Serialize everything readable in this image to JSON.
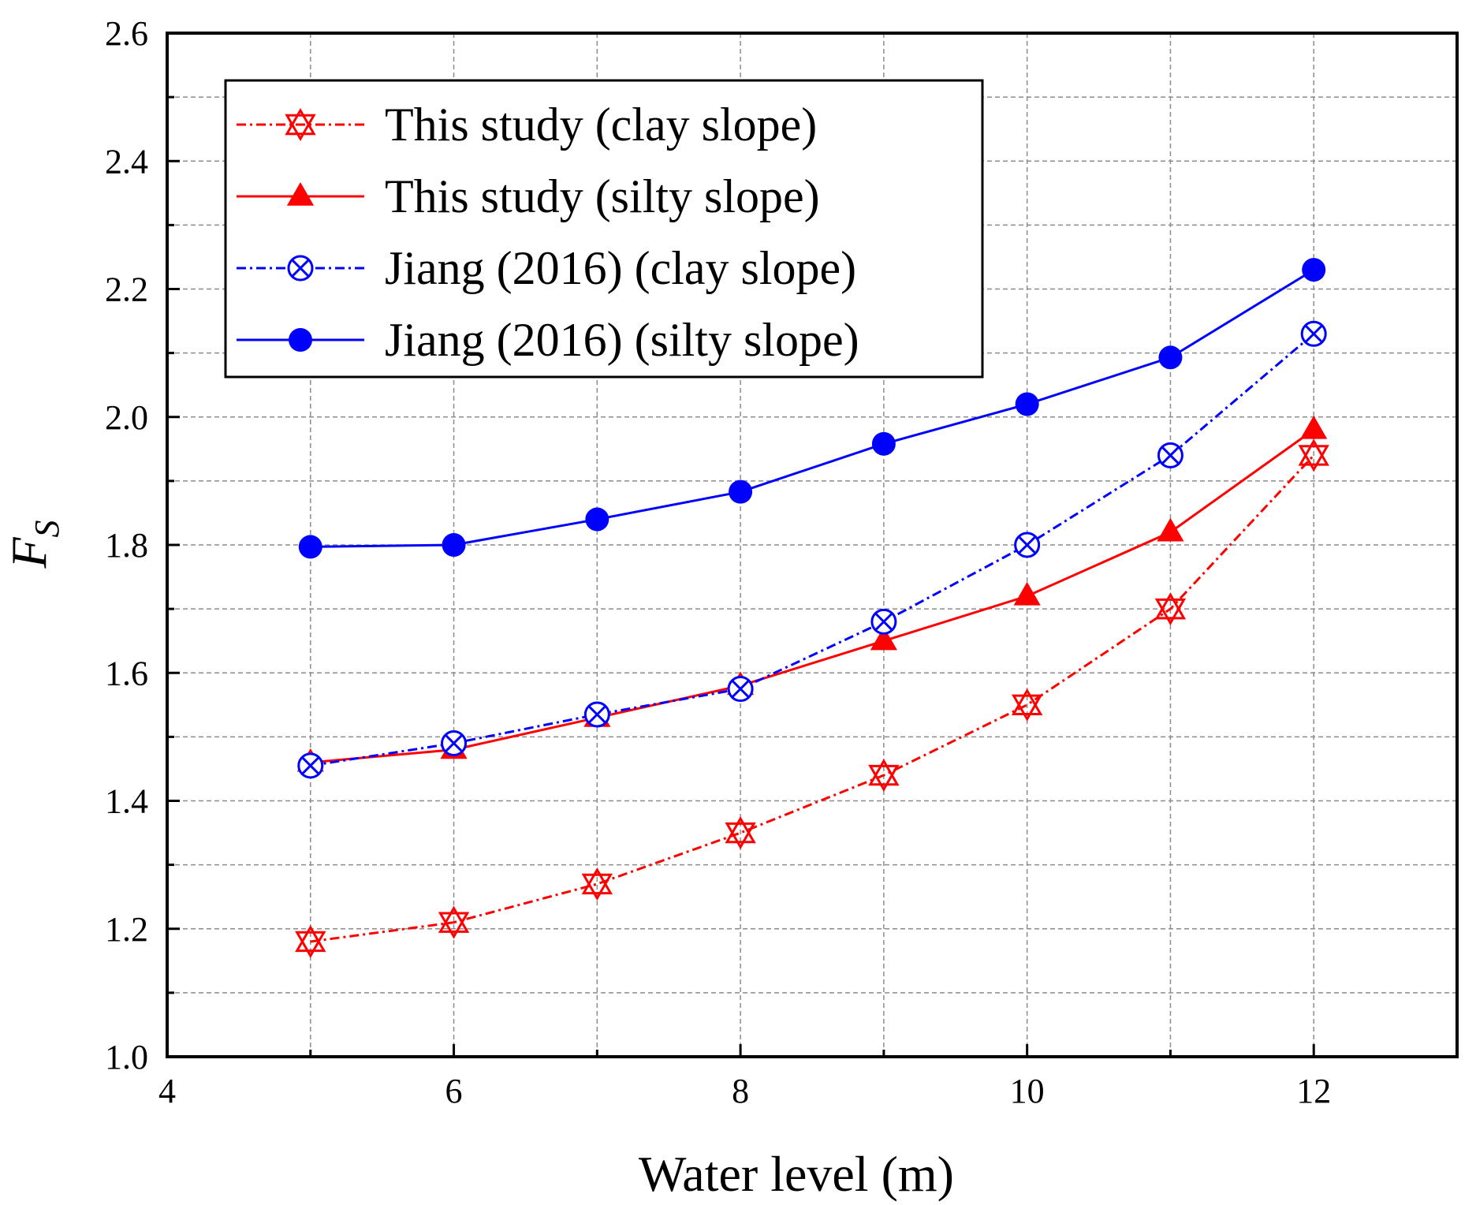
{
  "chart_data": {
    "type": "line",
    "title": "",
    "xlabel": "Water level (m)",
    "ylabel_main": "F",
    "ylabel_sub": "S",
    "xlim": [
      4,
      13
    ],
    "ylim": [
      1.0,
      2.6
    ],
    "xticks": [
      4,
      6,
      8,
      10,
      12
    ],
    "xtick_labels": [
      "4",
      "6",
      "8",
      "10",
      "12"
    ],
    "yticks": [
      1.0,
      1.2,
      1.4,
      1.6,
      1.8,
      2.0,
      2.2,
      2.4,
      2.6
    ],
    "ytick_labels": [
      "1.0",
      "1.2",
      "1.4",
      "1.6",
      "1.8",
      "2.0",
      "2.2",
      "2.4",
      "2.6"
    ],
    "grid": true,
    "legend_position": "top-left",
    "x": [
      5,
      6,
      7,
      8,
      9,
      10,
      11,
      12
    ],
    "series": [
      {
        "name": "This study (clay slope)",
        "values": [
          1.18,
          1.21,
          1.27,
          1.35,
          1.44,
          1.55,
          1.7,
          1.94
        ],
        "color": "#ff0000",
        "line_style": "dash-dot",
        "marker": "triangle-x-open"
      },
      {
        "name": "This study (silty slope)",
        "values": [
          1.46,
          1.48,
          1.53,
          1.58,
          1.65,
          1.72,
          1.82,
          1.98
        ],
        "color": "#ff0000",
        "line_style": "solid",
        "marker": "triangle-filled"
      },
      {
        "name": "Jiang (2016) (clay slope)",
        "values": [
          1.455,
          1.49,
          1.535,
          1.575,
          1.68,
          1.8,
          1.94,
          2.13
        ],
        "color": "#0000ff",
        "line_style": "dash-dot",
        "marker": "circle-x-open"
      },
      {
        "name": "Jiang (2016) (silty slope)",
        "values": [
          1.797,
          1.8,
          1.84,
          1.883,
          1.958,
          2.02,
          2.093,
          2.23
        ],
        "color": "#0000ff",
        "line_style": "solid",
        "marker": "circle-filled"
      }
    ]
  }
}
